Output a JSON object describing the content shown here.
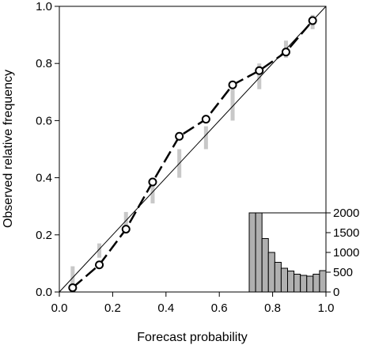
{
  "chart_data": {
    "type": "line",
    "xlabel": "Forecast probability",
    "ylabel": "Observed relative frequency",
    "xlim": [
      0,
      1
    ],
    "ylim": [
      0,
      1
    ],
    "x_ticks": [
      "0.0",
      "0.2",
      "0.4",
      "0.6",
      "0.8",
      "1.0"
    ],
    "y_ticks": [
      "0.0",
      "0.2",
      "0.4",
      "0.6",
      "0.8",
      "1.0"
    ],
    "diagonal_reference": [
      [
        0,
        0
      ],
      [
        1,
        1
      ]
    ],
    "grid": false,
    "series": [
      {
        "type": "line-markers",
        "x": [
          0.05,
          0.15,
          0.25,
          0.35,
          0.45,
          0.55,
          0.65,
          0.75,
          0.85,
          0.95
        ],
        "y": [
          0.015,
          0.095,
          0.22,
          0.385,
          0.545,
          0.605,
          0.725,
          0.775,
          0.84,
          0.95
        ]
      }
    ],
    "consistency_bars": [
      {
        "x": 0.05,
        "low": 0.02,
        "high": 0.09
      },
      {
        "x": 0.15,
        "low": 0.12,
        "high": 0.17
      },
      {
        "x": 0.25,
        "low": 0.22,
        "high": 0.28
      },
      {
        "x": 0.35,
        "low": 0.31,
        "high": 0.4
      },
      {
        "x": 0.45,
        "low": 0.4,
        "high": 0.5
      },
      {
        "x": 0.55,
        "low": 0.5,
        "high": 0.58
      },
      {
        "x": 0.65,
        "low": 0.6,
        "high": 0.71
      },
      {
        "x": 0.75,
        "low": 0.71,
        "high": 0.8
      },
      {
        "x": 0.85,
        "low": 0.82,
        "high": 0.88
      },
      {
        "x": 0.95,
        "low": 0.92,
        "high": 0.97
      }
    ],
    "inset_histogram": {
      "type": "bar",
      "position": "bottom-right",
      "ylim": [
        0,
        2000
      ],
      "y_ticks": [
        "0",
        "500",
        "1000",
        "1500",
        "2000"
      ],
      "values": [
        2000,
        2000,
        1350,
        1000,
        750,
        600,
        530,
        450,
        420,
        400,
        450,
        540
      ]
    }
  }
}
